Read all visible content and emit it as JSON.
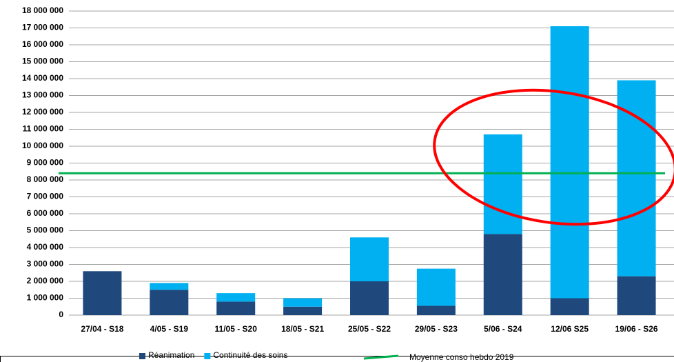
{
  "chart_data": {
    "type": "stacked_bar",
    "categories": [
      "27/04 - S18",
      "4/05 - S19",
      "11/05 - S20",
      "18/05 - S21",
      "25/05 - S22",
      "29/05 - S23",
      "5/06 - S24",
      "12/06 S25",
      "19/06 - S26"
    ],
    "series": [
      {
        "name": "Réanimation",
        "color": "#1f497d",
        "values": [
          2600000,
          1500000,
          800000,
          500000,
          2000000,
          550000,
          4800000,
          1000000,
          2300000
        ]
      },
      {
        "name": "Continuité des soins",
        "color": "#00b0f0",
        "values": [
          0,
          400000,
          500000,
          500000,
          2600000,
          2200000,
          5900000,
          16100000,
          11600000
        ]
      }
    ],
    "reference_line": {
      "name": "Moyenne conso hebdo 2019",
      "color": "#00b050",
      "value": 8400000
    },
    "ylim": [
      0,
      18000000
    ],
    "yticks": [
      {
        "value": 0,
        "label": "0"
      },
      {
        "value": 1000000,
        "label": "1 000 000"
      },
      {
        "value": 2000000,
        "label": "2 000 000"
      },
      {
        "value": 3000000,
        "label": "3 000 000"
      },
      {
        "value": 4000000,
        "label": "4 000 000"
      },
      {
        "value": 5000000,
        "label": "5 000 000"
      },
      {
        "value": 6000000,
        "label": "6 000 000"
      },
      {
        "value": 7000000,
        "label": "7 000 000"
      },
      {
        "value": 8000000,
        "label": "8 000 000"
      },
      {
        "value": 9000000,
        "label": "9 000 000"
      },
      {
        "value": 10000000,
        "label": "10 000 000"
      },
      {
        "value": 11000000,
        "label": "11 000 000"
      },
      {
        "value": 12000000,
        "label": "12 000 000"
      },
      {
        "value": 13000000,
        "label": "13 000 000"
      },
      {
        "value": 14000000,
        "label": "14 000 000"
      },
      {
        "value": 15000000,
        "label": "15 000 000"
      },
      {
        "value": 16000000,
        "label": "16 000 000"
      },
      {
        "value": 17000000,
        "label": "17 000 000"
      },
      {
        "value": 18000000,
        "label": "18 000 000"
      }
    ],
    "grid": true
  }
}
